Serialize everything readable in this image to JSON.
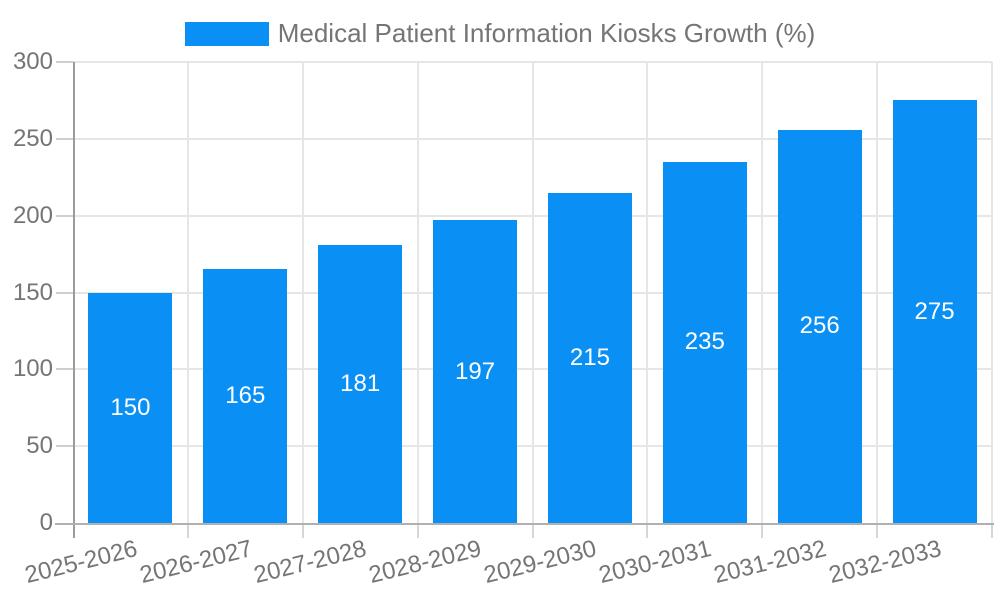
{
  "chart_data": {
    "type": "bar",
    "title": "Medical Patient Information Kiosks Growth (%)",
    "legend": [
      "Medical Patient Information Kiosks Growth (%)"
    ],
    "legend_position": "top-center",
    "categories": [
      "2025-2026",
      "2026-2027",
      "2027-2028",
      "2028-2029",
      "2029-2030",
      "2030-2031",
      "2031-2032",
      "2032-2033"
    ],
    "values": [
      150,
      165,
      181,
      197,
      215,
      235,
      256,
      275
    ],
    "value_labels_shown": true,
    "xlabel": "",
    "ylabel": "",
    "ylim": [
      0,
      300
    ],
    "yticks": [
      0,
      50,
      100,
      150,
      200,
      250,
      300
    ],
    "grid": "horizontal-and-vertical",
    "x_tick_rotation_deg": -14,
    "colors": {
      "bar": "#0a90f5",
      "bar_value_text": "#ffffff",
      "axis_text": "#757575",
      "gridline": "#e6e6e6",
      "axis_line": "#9b9b9b",
      "background": "#ffffff"
    }
  }
}
